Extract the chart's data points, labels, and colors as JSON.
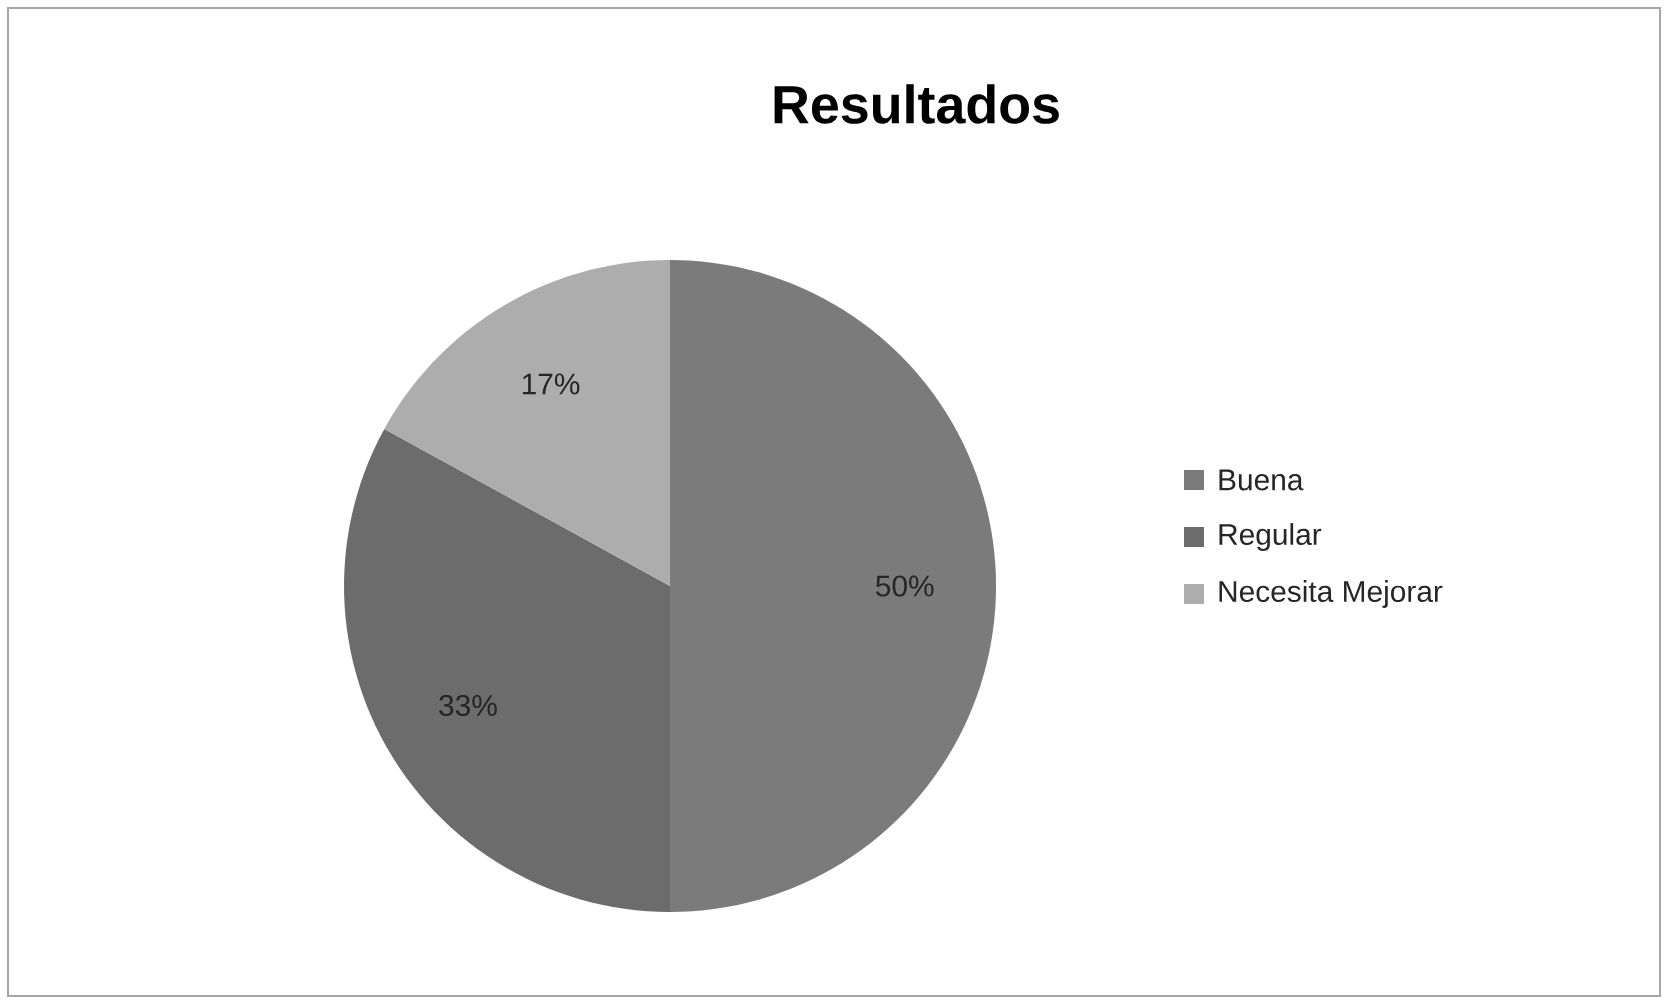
{
  "chart_data": {
    "type": "pie",
    "title": "Resultados",
    "categories": [
      "Buena",
      "Regular",
      "Necesita Mejorar"
    ],
    "values": [
      50,
      33,
      17
    ],
    "colors": [
      "#7b7b7b",
      "#6c6c6c",
      "#adadad"
    ],
    "value_labels": [
      "50%",
      "33%",
      "17%"
    ],
    "legend": "right"
  }
}
